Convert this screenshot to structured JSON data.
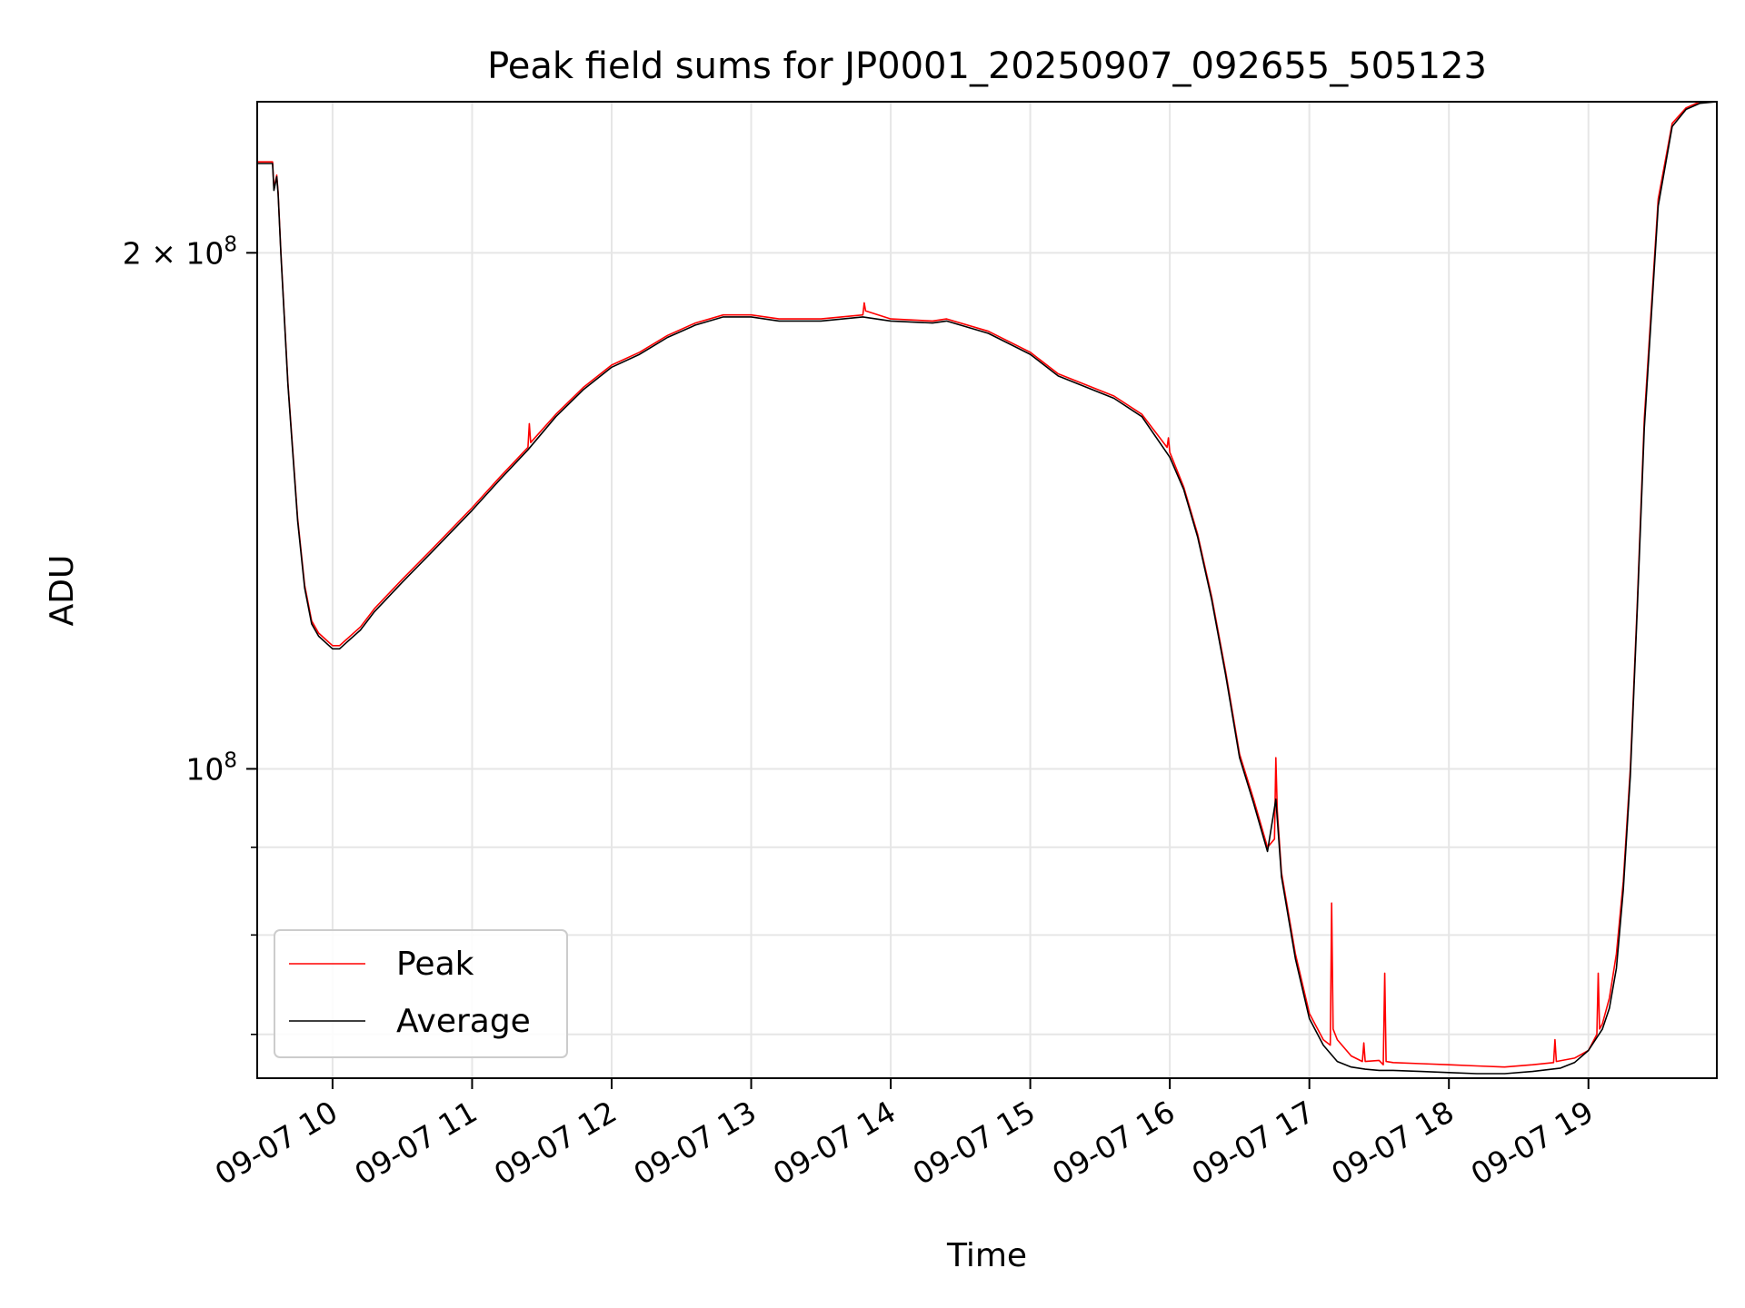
{
  "chart_data": {
    "type": "line",
    "title": "Peak field sums for JP0001_20250907_092655_505123",
    "xlabel": "Time",
    "ylabel": "ADU",
    "yscale": "log",
    "xlim": [
      9.46,
      19.92
    ],
    "ylim": [
      66000000,
      245000000
    ],
    "grid": true,
    "x_ticks": [
      {
        "value": 10,
        "label": "09-07 10"
      },
      {
        "value": 11,
        "label": "09-07 11"
      },
      {
        "value": 12,
        "label": "09-07 12"
      },
      {
        "value": 13,
        "label": "09-07 13"
      },
      {
        "value": 14,
        "label": "09-07 14"
      },
      {
        "value": 15,
        "label": "09-07 15"
      },
      {
        "value": 16,
        "label": "09-07 16"
      },
      {
        "value": 17,
        "label": "09-07 17"
      },
      {
        "value": 18,
        "label": "09-07 18"
      },
      {
        "value": 19,
        "label": "09-07 19"
      }
    ],
    "y_major_ticks": [
      {
        "value": 100000000,
        "base": "10",
        "exp": "8",
        "label": "10^8"
      },
      {
        "value": 200000000,
        "base": "2 × 10",
        "exp": "8",
        "label": "2 × 10^8"
      }
    ],
    "y_minor_ticks": [
      70000000,
      80000000,
      90000000
    ],
    "legend": {
      "position": "lower-left"
    },
    "series": [
      {
        "name": "Peak",
        "color": "#ff0000",
        "x": [
          9.46,
          9.57,
          9.58,
          9.6,
          9.61,
          9.63,
          9.68,
          9.75,
          9.8,
          9.85,
          9.9,
          9.95,
          10.0,
          10.05,
          10.1,
          10.2,
          10.3,
          10.5,
          10.7,
          11.0,
          11.2,
          11.4,
          11.41,
          11.42,
          11.6,
          11.8,
          12.0,
          12.2,
          12.4,
          12.6,
          12.8,
          13.0,
          13.2,
          13.5,
          13.8,
          13.81,
          13.82,
          14.0,
          14.3,
          14.4,
          14.7,
          15.0,
          15.2,
          15.6,
          15.8,
          15.98,
          15.99,
          16.0,
          16.1,
          16.2,
          16.3,
          16.4,
          16.5,
          16.6,
          16.7,
          16.75,
          16.76,
          16.77,
          16.8,
          16.9,
          17.0,
          17.1,
          17.15,
          17.16,
          17.17,
          17.2,
          17.3,
          17.38,
          17.39,
          17.4,
          17.5,
          17.53,
          17.54,
          17.55,
          17.6,
          17.8,
          18.0,
          18.2,
          18.4,
          18.6,
          18.75,
          18.76,
          18.77,
          18.9,
          19.0,
          19.06,
          19.07,
          19.08,
          19.1,
          19.15,
          19.2,
          19.25,
          19.3,
          19.35,
          19.4,
          19.5,
          19.6,
          19.7,
          19.8,
          19.92
        ],
        "y": [
          226000000,
          226000000,
          218000000,
          222000000,
          217000000,
          200000000,
          168000000,
          140000000,
          128000000,
          122000000,
          120000000,
          119000000,
          118000000,
          118000000,
          119000000,
          121000000,
          124000000,
          129000000,
          134000000,
          142000000,
          148000000,
          154000000,
          159000000,
          155000000,
          161000000,
          167000000,
          172000000,
          175000000,
          179000000,
          182000000,
          184000000,
          184000000,
          183000000,
          183000000,
          184000000,
          187000000,
          185000000,
          183000000,
          182500000,
          183000000,
          180000000,
          175000000,
          170000000,
          165000000,
          161000000,
          154000000,
          156000000,
          153000000,
          146000000,
          137000000,
          126000000,
          114000000,
          102000000,
          96000000,
          90000000,
          91000000,
          101500000,
          94500000,
          87000000,
          78000000,
          72000000,
          69500000,
          69000000,
          83500000,
          70500000,
          69500000,
          68000000,
          67500000,
          69200000,
          67500000,
          67600000,
          67200000,
          76000000,
          67500000,
          67400000,
          67300000,
          67200000,
          67100000,
          67000000,
          67200000,
          67400000,
          69500000,
          67500000,
          67800000,
          68500000,
          70000000,
          76000000,
          70500000,
          71000000,
          73500000,
          78000000,
          86000000,
          100000000,
          125000000,
          160000000,
          215000000,
          238000000,
          243000000,
          245000000,
          245000000
        ]
      },
      {
        "name": "Average",
        "color": "#000000",
        "x": [
          9.46,
          9.57,
          9.58,
          9.6,
          9.61,
          9.63,
          9.68,
          9.75,
          9.8,
          9.85,
          9.9,
          9.95,
          10.0,
          10.05,
          10.1,
          10.2,
          10.3,
          10.5,
          10.7,
          11.0,
          11.2,
          11.4,
          11.6,
          11.8,
          12.0,
          12.2,
          12.4,
          12.6,
          12.8,
          13.0,
          13.2,
          13.5,
          13.8,
          14.0,
          14.3,
          14.4,
          14.7,
          15.0,
          15.2,
          15.6,
          15.8,
          16.0,
          16.1,
          16.2,
          16.3,
          16.4,
          16.5,
          16.6,
          16.7,
          16.76,
          16.8,
          16.9,
          17.0,
          17.1,
          17.2,
          17.3,
          17.4,
          17.5,
          17.6,
          17.8,
          18.0,
          18.2,
          18.4,
          18.6,
          18.8,
          18.9,
          19.0,
          19.1,
          19.15,
          19.2,
          19.25,
          19.3,
          19.35,
          19.4,
          19.5,
          19.6,
          19.7,
          19.8,
          19.92
        ],
        "y": [
          225500000,
          225500000,
          217500000,
          221500000,
          216500000,
          199500000,
          167500000,
          139500000,
          127500000,
          121500000,
          119500000,
          118500000,
          117500000,
          117500000,
          118500000,
          120500000,
          123500000,
          128500000,
          133500000,
          141500000,
          147500000,
          153500000,
          160500000,
          166500000,
          171500000,
          174500000,
          178500000,
          181500000,
          183500000,
          183500000,
          182500000,
          182500000,
          183500000,
          182500000,
          182000000,
          182500000,
          179500000,
          174500000,
          169500000,
          164500000,
          160500000,
          152000000,
          145500000,
          136500000,
          125500000,
          113500000,
          101500000,
          95500000,
          89500000,
          96000000,
          86500000,
          77500000,
          71500000,
          69000000,
          67500000,
          67000000,
          66800000,
          66700000,
          66700000,
          66600000,
          66500000,
          66400000,
          66400000,
          66600000,
          66900000,
          67400000,
          68500000,
          70500000,
          72500000,
          76500000,
          85000000,
          99000000,
          124000000,
          158000000,
          213000000,
          237000000,
          242500000,
          244500000,
          245000000
        ]
      }
    ]
  }
}
